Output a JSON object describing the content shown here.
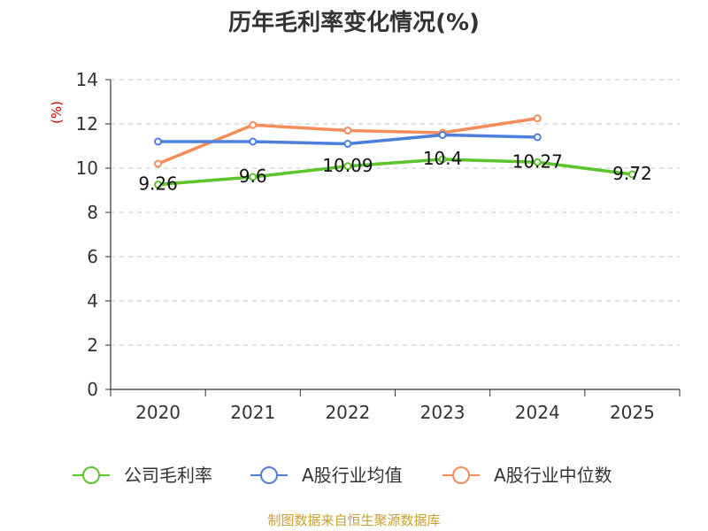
{
  "chart_data": {
    "type": "line",
    "title": "历年毛利率变化情况(%)",
    "ylabel": "(%)",
    "categories": [
      "2020",
      "2021",
      "2022",
      "2023",
      "2024",
      "2025"
    ],
    "ylim": [
      0,
      14
    ],
    "yticks": [
      0,
      2,
      4,
      6,
      8,
      10,
      12,
      14
    ],
    "grid": true,
    "legend_position": "bottom",
    "series": [
      {
        "name": "公司毛利率",
        "color": "#5cc52a",
        "values": [
          9.26,
          9.6,
          10.09,
          10.4,
          10.27,
          9.72
        ],
        "labels": [
          "9.26",
          "9.6",
          "10.09",
          "10.4",
          "10.27",
          "9.72"
        ]
      },
      {
        "name": "A股行业均值",
        "color": "#4b7fdb",
        "values": [
          11.2,
          11.2,
          11.1,
          11.5,
          11.4,
          null
        ]
      },
      {
        "name": "A股行业中位数",
        "color": "#f58d5a",
        "values": [
          10.2,
          11.95,
          11.7,
          11.6,
          12.25,
          null
        ]
      }
    ],
    "ylabel_color": "#cc0000"
  },
  "footer": {
    "source": "制图数据来自恒生聚源数据库",
    "color": "#c8a032"
  }
}
